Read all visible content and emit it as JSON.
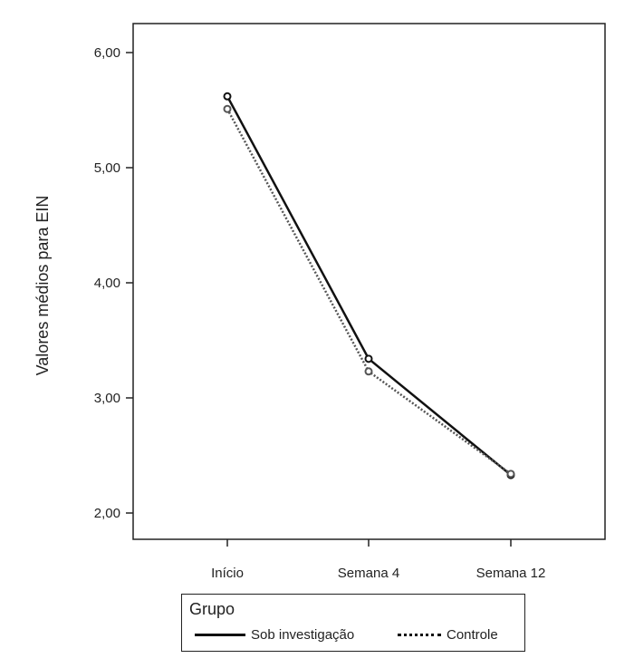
{
  "chart_data": {
    "type": "line",
    "title": "",
    "xlabel": "",
    "ylabel": "Valores médios para EIN",
    "categories": [
      "Início",
      "Semana 4",
      "Semana 12"
    ],
    "ylim": [
      1.8,
      6.3
    ],
    "yticks": [
      "6,00",
      "5,00",
      "4,00",
      "3,00",
      "2,00"
    ],
    "ytick_values": [
      6,
      5,
      4,
      3,
      2
    ],
    "grid": false,
    "legend_position": "bottom",
    "series": [
      {
        "name": "Sob investigação",
        "values": [
          5.62,
          3.34,
          2.33
        ],
        "style": "solid",
        "color": "#111111"
      },
      {
        "name": "Controle",
        "values": [
          5.51,
          3.23,
          2.34
        ],
        "style": "dotted",
        "color": "#555555"
      }
    ]
  },
  "legend": {
    "title": "Grupo",
    "items": [
      "Sob investigação",
      "Controle"
    ]
  }
}
